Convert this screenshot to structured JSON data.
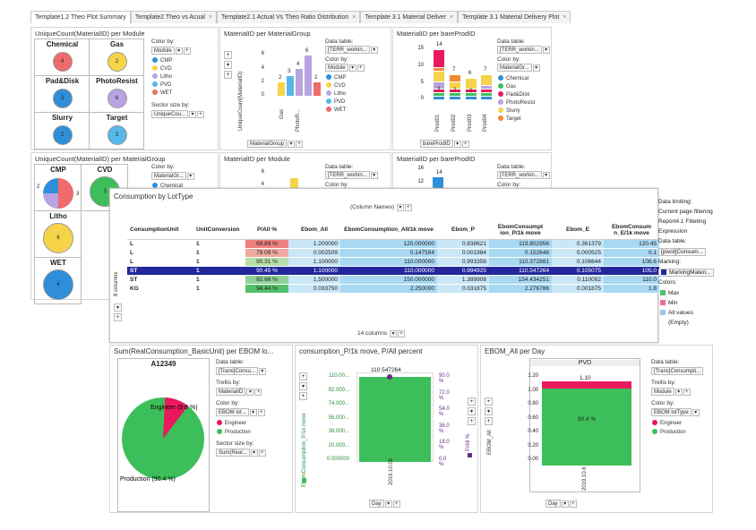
{
  "tabs": [
    {
      "label": "Template1.2 Theo Plot Summary",
      "active": true
    },
    {
      "label": "Template2 Theo vs Acual"
    },
    {
      "label": "Template2.1 Actual Vs Theo Ratio Distribution"
    },
    {
      "label": "Template 3.1 Material Deliver"
    },
    {
      "label": "Template 3.1 Material Delivery Plot"
    }
  ],
  "p1": {
    "title": "UniqueCount(MaterialID) per Module",
    "cells": [
      {
        "name": "Chemical",
        "value": "4",
        "color": "#ef6b6b"
      },
      {
        "name": "Gas",
        "value": "2",
        "color": "#f5d44a"
      },
      {
        "name": "Pad&Disk",
        "value": "3",
        "color": "#2f8ed8"
      },
      {
        "name": "PhotoResist",
        "value": "6",
        "color": "#b9a3e0"
      },
      {
        "name": "Slurry",
        "value": "2",
        "color": "#2f8ed8"
      },
      {
        "name": "Target",
        "value": "3",
        "color": "#55b8e8"
      }
    ],
    "color_by": "Color by:",
    "color_val": "Module",
    "legend": [
      "CMP",
      "CVD",
      "Litho",
      "PVD",
      "WET"
    ],
    "size_by": "Sector size by:",
    "size_val": "UniqueCou..."
  },
  "p2": {
    "title": "MaterialID per MaterialGroup",
    "ylabel": "UniqueCount(MaterialID)",
    "xaxis": "MaterialGroup",
    "data_table": "Data table:",
    "data_val": "[TERR_workin...",
    "color_by": "Color by:",
    "color_val": "Module",
    "legend": [
      "CMP",
      "CVD",
      "Litho",
      "PVD",
      "WET"
    ],
    "ticks": [
      "6",
      "4",
      "2",
      "0"
    ],
    "cats": [
      "Gas",
      "PhotoR..."
    ],
    "bar_labels": [
      "2",
      "3",
      "4",
      "6",
      "2"
    ]
  },
  "p3": {
    "title": "MaterialID per bareProdID",
    "xaxis": "bareProdID",
    "data_table": "Data table:",
    "data_val": "[TERR_workin...",
    "color_by": "Color by:",
    "color_val": "MaterialGr...",
    "legend": [
      "Chemical",
      "Gas",
      "Pad&Disk",
      "PhotoResist",
      "Slurry",
      "Target"
    ],
    "ticks": [
      "15",
      "10",
      "5",
      "0"
    ],
    "cats": [
      "Prod01",
      "Prod02",
      "Prod03",
      "Prod04"
    ],
    "totals": [
      "14",
      "7",
      "6",
      "7"
    ],
    "inner": [
      "3",
      "2",
      "3"
    ]
  },
  "p4": {
    "title": "UniqueCount(MaterialID) per MaterialGroup",
    "cells": [
      "CMP",
      "CVD",
      "Litho",
      "WET"
    ],
    "values": [
      "2",
      "3",
      "6",
      "4"
    ],
    "color_by": "Color by:",
    "color_val": "MaterialGr...",
    "legend": [
      "Chemical"
    ]
  },
  "p5": {
    "title": "MaterialID per Module",
    "ticks": [
      "6",
      "4"
    ],
    "data_table": "Data table:",
    "data_val": "[TERR_workin...",
    "color_by": "Color by:"
  },
  "p6": {
    "title": "MaterialID per bareProdID",
    "ticks": [
      "16",
      "12"
    ],
    "top": "14",
    "data_table": "Data table:",
    "data_val": "[TERR_workin...",
    "color_by": "Color by:"
  },
  "cross": {
    "title": "Consumption by LotType",
    "col_names": "(Column Names)",
    "rows_label": "8 columns",
    "cols_label": "14 columns",
    "headers": [
      "ConsumptionUnit",
      "UnitConversion",
      "P/All %",
      "Ebom_All",
      "EbomConsumption_All/1k move",
      "Ebom_P",
      "EbomConsumption_P/1k move",
      "Ebom_E",
      "EbomConsumption_E/1k move"
    ],
    "headers_short": [
      "ConsumptionUnit",
      "UnitConversion",
      "P/All %",
      "Ebom_All",
      "EbomConsumption_All/1k move",
      "Ebom_P",
      "EbomConsumpt ion_P/1k move",
      "Ebom_E",
      "EbomConsum n_E/1k move"
    ],
    "rows": [
      [
        "L",
        "1",
        "69.89 %",
        "1.200000",
        "120.000000",
        "0.838621",
        "119.802956",
        "0.361379",
        "120.45"
      ],
      [
        "L",
        "1",
        "79.09 %",
        "0.002509",
        "0.147594",
        "0.001984",
        "0.152646",
        "0.000525",
        "0.1"
      ],
      [
        "L",
        "1",
        "90.31 %",
        "1.100000",
        "110.000000",
        "0.993356",
        "110.372881",
        "0.106644",
        "106.6"
      ],
      [
        "ST",
        "1",
        "90.45 %",
        "1.100000",
        "110.000000",
        "0.994925",
        "110.547264",
        "0.105075",
        "105.0"
      ],
      [
        "ST",
        "1",
        "92.66 %",
        "1.500000",
        "150.000000",
        "1.389908",
        "154.434251",
        "0.110092",
        "110.0"
      ],
      [
        "KG",
        "1",
        "94.44 %",
        "0.033750",
        "2.250000",
        "0.031875",
        "2.276786",
        "0.001875",
        "1.8"
      ]
    ],
    "pct_colors": [
      "#ef8080",
      "#f0a9a0",
      "#b6dfa8",
      "#23279b",
      "#8fd199",
      "#53c06a"
    ]
  },
  "side": {
    "items": [
      "Data limiting:",
      "Current page filtering",
      "Report4.1 Filteting",
      "Expression",
      "Data table:",
      "[pivot]Consum...",
      "Marking:",
      "MarkingMateri...",
      "Colors:",
      "Max",
      "Min",
      "All values",
      "(Empty)"
    ],
    "max_color": "#53c06a",
    "min_color": "#ef6b9c"
  },
  "pie": {
    "title": "Sum(RealConsumption_BasicUnit) per EBOM lo...",
    "header": "A12349",
    "labels": [
      "Engineer (9.6 %)",
      "Production (90.4 %)"
    ],
    "data_table": "Data table:",
    "data_val": "[Trans]Consu...",
    "trellis": "Trellis by:",
    "trellis_val": "MaterialID",
    "color_by": "Color by:",
    "color_val": "EBOM lot...",
    "legend": [
      "Engineer",
      "Production"
    ],
    "size_by": "Sector size by:",
    "size_val": "Sum(Real...",
    "values": [
      9.6,
      90.4
    ]
  },
  "cmove": {
    "title": "consumption_P/1k move, P/All percent",
    "ylabel": "EbomConsumption_P/1k move",
    "y2label": "P/All %",
    "value": "110.547264",
    "ticks": [
      "110.00...",
      "92.000...",
      "74.000...",
      "56.000...",
      "38.000...",
      "20.000...",
      "0.000000"
    ],
    "ticks2": [
      "90.0 %",
      "72.0 %",
      "54.0 %",
      "36.0 %",
      "18.0 %",
      "0.0 %"
    ],
    "xlabel": "2019.10.06",
    "xaxis": "Day"
  },
  "ebom": {
    "title": "EBOM_All per Day",
    "header": "PVD",
    "ylabel": "EBOM_All",
    "ticks": [
      "1.20",
      "1.00",
      "0.80",
      "0.60",
      "0.40",
      "0.20",
      "0.00"
    ],
    "top": "1.10",
    "inner": "90.4 %",
    "xlabel": "2019.10.6",
    "xaxis": "Day",
    "data_table": "Data table:",
    "data_val": "[Trans]Consumpti...",
    "trellis": "Trellis by:",
    "trellis_val": "Module",
    "color_by": "Color by:",
    "color_val": "EBOM lotType",
    "legend": [
      "Engineer",
      "Production"
    ]
  },
  "colors": {
    "cmp": "#2f8ed8",
    "cvd": "#f5d44a",
    "litho": "#b9a3e0",
    "pvd": "#55b8e8",
    "wet": "#ef6b6b",
    "engineer": "#e8195f",
    "production": "#3cbf5a"
  }
}
